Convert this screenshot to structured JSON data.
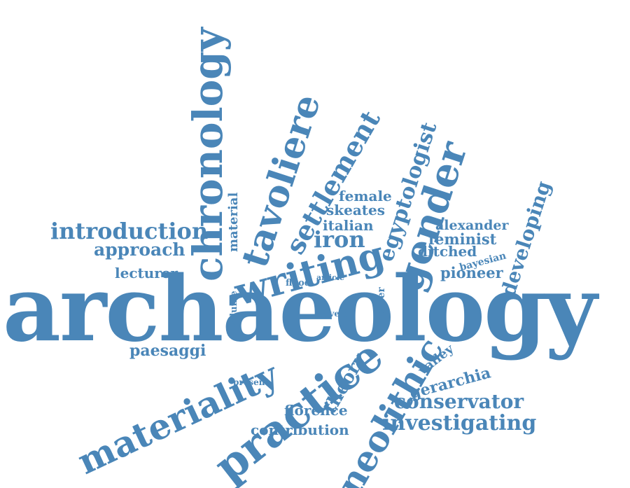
{
  "color": "#4a86b8",
  "words": {
    "archaeology": "archaeology",
    "chronology": "chronology",
    "tavoliere": "tavoliere",
    "writing": "writing",
    "practice": "practice",
    "materiality": "materiality",
    "neolithic": "neolithic",
    "gender": "gender",
    "settlement": "settlement",
    "egyptologist": "egyptologist",
    "introduction": "introduction",
    "approach": "approach",
    "investigating": "investigating",
    "conservator": "conservator",
    "theory": "theory",
    "developing": "developing",
    "iron": "iron",
    "italian": "italian",
    "skeates": "skeates",
    "female": "female",
    "material": "material",
    "alexander": "alexander",
    "feminist": "feminist",
    "ditched": "ditched",
    "bayesian": "bayesian",
    "pioneer": "pioneer",
    "lecturer": "lecturer",
    "volume": "volume",
    "flood": "flood",
    "article": "article",
    "several": "several",
    "paper": "paper",
    "paesaggi": "paesaggi",
    "present": "present",
    "florence": "florence",
    "contribution": "contribution",
    "valley": "valley",
    "gerarchia": "gerarchia"
  }
}
